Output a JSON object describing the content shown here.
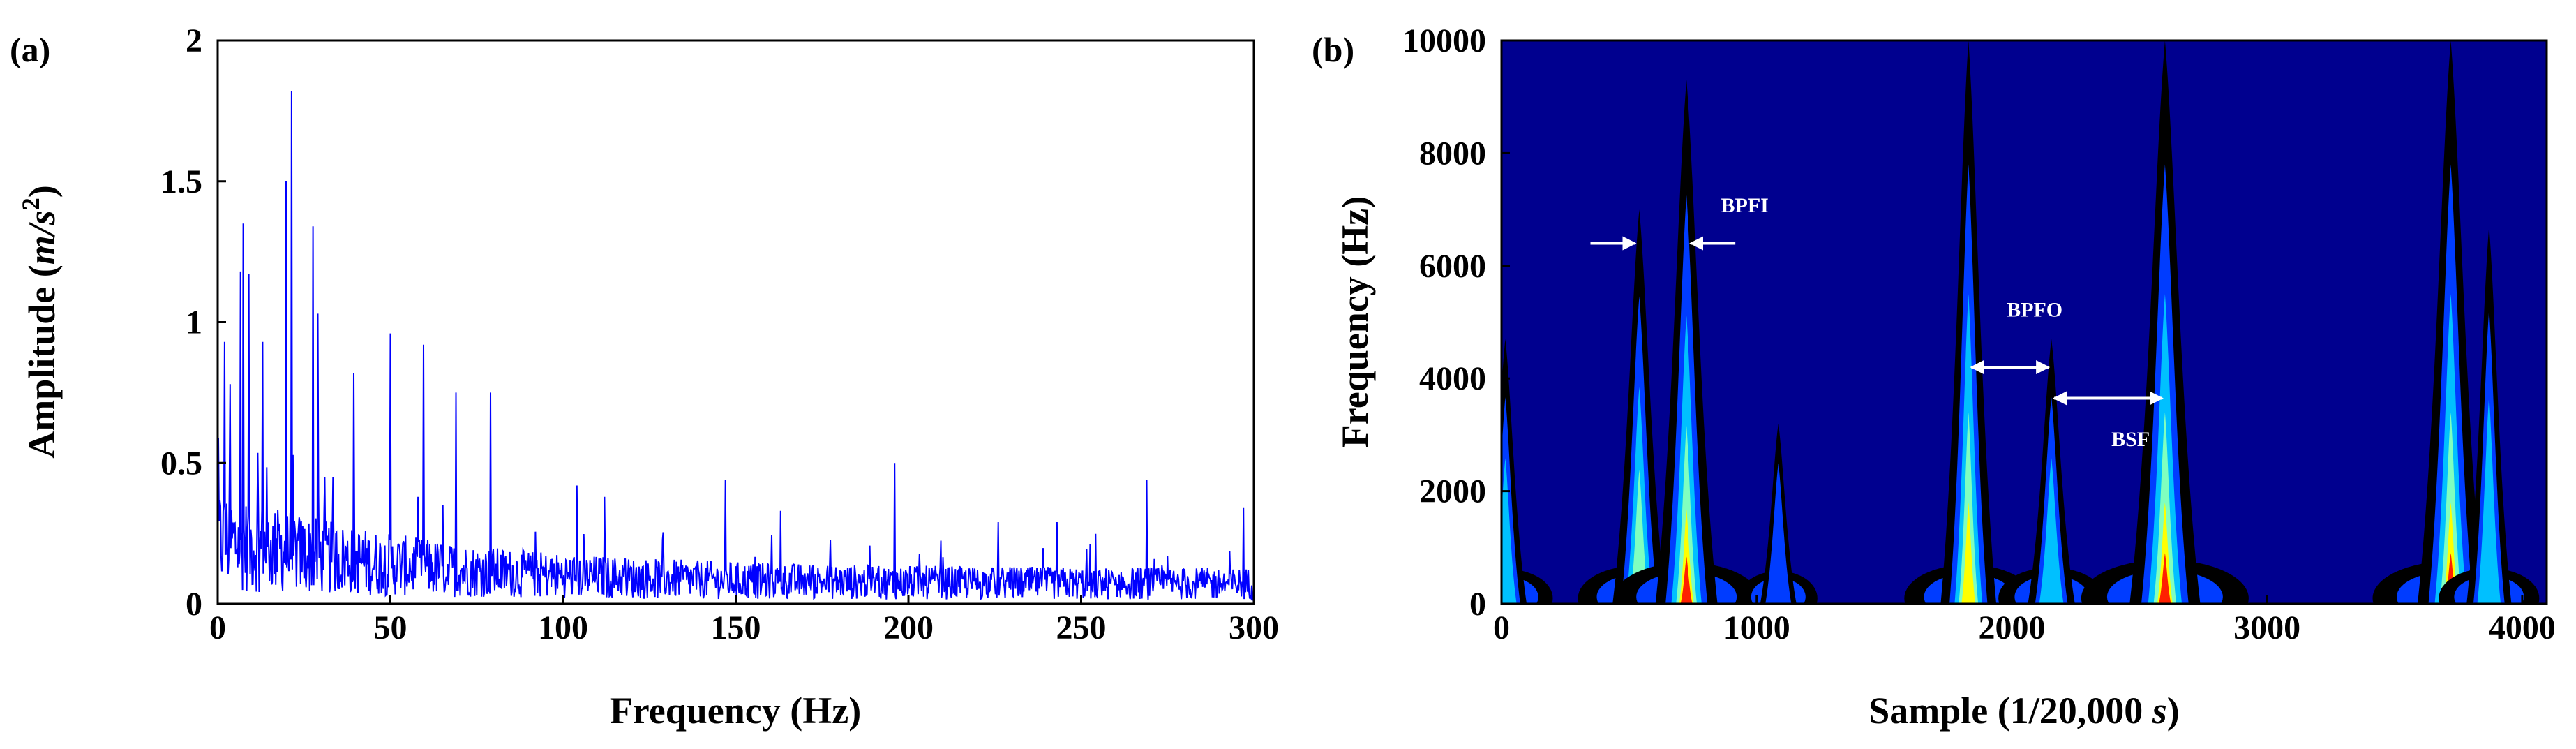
{
  "chart_data": [
    {
      "panel_label": "(a)",
      "type": "line",
      "xlabel": "Frequency (Hz)",
      "ylabel_main": "Amplitude (",
      "ylabel_unit": "m/s",
      "ylabel_exp": "2",
      "ylabel_close": ")",
      "xlim": [
        0,
        300
      ],
      "ylim": [
        0,
        2
      ],
      "x_ticks": [
        0,
        50,
        100,
        150,
        200,
        250,
        300
      ],
      "y_ticks": [
        0,
        0.5,
        1,
        1.5,
        2
      ],
      "x_tick_labels": [
        "0",
        "50",
        "100",
        "150",
        "200",
        "250",
        "300"
      ],
      "y_tick_labels": [
        "0",
        "0.5",
        "1",
        "1.5",
        "2"
      ],
      "grid": false,
      "line_color": "#0000ff",
      "peaks": [
        {
          "x": 2,
          "y": 0.93
        },
        {
          "x": 3.5,
          "y": 0.78
        },
        {
          "x": 6.5,
          "y": 1.18
        },
        {
          "x": 7.3,
          "y": 1.35
        },
        {
          "x": 9,
          "y": 1.17
        },
        {
          "x": 13,
          "y": 0.93
        },
        {
          "x": 19.8,
          "y": 1.5
        },
        {
          "x": 21.3,
          "y": 1.82
        },
        {
          "x": 27.5,
          "y": 1.34
        },
        {
          "x": 29,
          "y": 1.03
        },
        {
          "x": 39.5,
          "y": 0.82
        },
        {
          "x": 50,
          "y": 0.96
        },
        {
          "x": 59.5,
          "y": 0.92
        },
        {
          "x": 69,
          "y": 0.75
        },
        {
          "x": 79,
          "y": 0.75
        },
        {
          "x": 104,
          "y": 0.42
        },
        {
          "x": 112,
          "y": 0.38
        },
        {
          "x": 147,
          "y": 0.44
        },
        {
          "x": 163,
          "y": 0.33
        },
        {
          "x": 196,
          "y": 0.5
        },
        {
          "x": 226,
          "y": 0.29
        },
        {
          "x": 243,
          "y": 0.29
        },
        {
          "x": 269,
          "y": 0.44
        },
        {
          "x": 297,
          "y": 0.34
        }
      ]
    },
    {
      "panel_label": "(b)",
      "type": "heatmap",
      "xlabel_main": "Sample (1/20,000 ",
      "xlabel_unit": "s",
      "xlabel_close": ")",
      "ylabel": "Frequency (Hz)",
      "xlim": [
        0,
        4096
      ],
      "ylim": [
        0,
        10000
      ],
      "x_ticks": [
        0,
        1000,
        2000,
        3000,
        4000
      ],
      "y_ticks": [
        0,
        2000,
        4000,
        6000,
        8000,
        10000
      ],
      "x_tick_labels": [
        "0",
        "1000",
        "2000",
        "3000",
        "4000"
      ],
      "y_tick_labels": [
        "0",
        "2000",
        "4000",
        "6000",
        "8000",
        "10000"
      ],
      "background_color": "#00008f",
      "impulses": [
        {
          "x": 15,
          "top": 4700,
          "energy": 0.35
        },
        {
          "x": 540,
          "top": 7000,
          "energy": 0.6
        },
        {
          "x": 725,
          "top": 9300,
          "energy": 0.8
        },
        {
          "x": 1085,
          "top": 3200,
          "energy": 0.2
        },
        {
          "x": 1830,
          "top": 10000,
          "energy": 0.65
        },
        {
          "x": 2155,
          "top": 4700,
          "energy": 0.45
        },
        {
          "x": 2600,
          "top": 10000,
          "energy": 1.0
        },
        {
          "x": 3720,
          "top": 10000,
          "energy": 0.9
        },
        {
          "x": 3870,
          "top": 6700,
          "energy": 0.4
        }
      ],
      "annotations": [
        {
          "text": "BPFI",
          "x": 860,
          "y": 6950
        },
        {
          "text": "BPFO",
          "x": 1980,
          "y": 5100
        },
        {
          "text": "BSF",
          "x": 2390,
          "y": 2800
        }
      ],
      "arrows": [
        {
          "type": "inward",
          "x1": 540,
          "x2": 725,
          "y": 6400
        },
        {
          "type": "double",
          "x1": 1830,
          "x2": 2155,
          "y": 4200
        },
        {
          "type": "double",
          "x1": 2155,
          "x2": 2600,
          "y": 3650
        }
      ]
    }
  ]
}
